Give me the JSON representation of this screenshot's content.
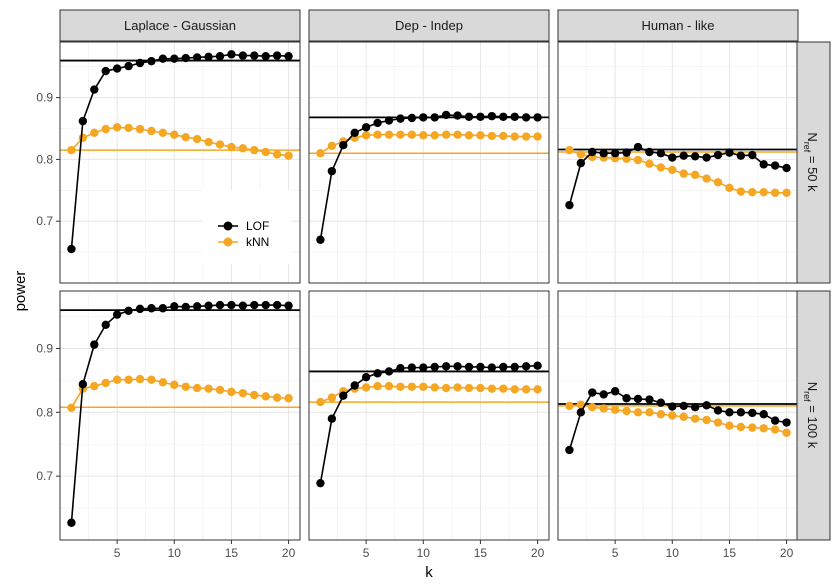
{
  "chart_data": {
    "type": "line",
    "xlabel": "k",
    "ylabel": "power",
    "xlim": [
      0,
      21
    ],
    "ylim": [
      0.6,
      0.99
    ],
    "x_ticks": [
      5,
      10,
      15,
      20
    ],
    "y_ticks": [
      0.7,
      0.8,
      0.9
    ],
    "columns": [
      "Laplace - Gaussian",
      "Dep - Indep",
      "Human - like"
    ],
    "rows": [
      {
        "label_main": "N",
        "label_sub": "ref",
        "label_rest": " = 50 k"
      },
      {
        "label_main": "N",
        "label_sub": "ref",
        "label_rest": " = 100 k"
      }
    ],
    "legend": [
      {
        "name": "LOF",
        "color": "#000000"
      },
      {
        "name": "kNN",
        "color": "#f5a623"
      }
    ],
    "x": [
      1,
      2,
      3,
      4,
      5,
      6,
      7,
      8,
      9,
      10,
      11,
      12,
      13,
      14,
      15,
      16,
      17,
      18,
      19,
      20
    ],
    "panels": [
      {
        "row": 0,
        "col": 0,
        "hlines": {
          "LOF": 0.96,
          "kNN": 0.815
        },
        "series": [
          {
            "name": "LOF",
            "values": [
              0.655,
              0.862,
              0.913,
              0.943,
              0.947,
              0.951,
              0.956,
              0.959,
              0.963,
              0.963,
              0.964,
              0.965,
              0.966,
              0.967,
              0.97,
              0.968,
              0.968,
              0.967,
              0.968,
              0.967
            ]
          },
          {
            "name": "kNN",
            "values": [
              0.815,
              0.835,
              0.843,
              0.849,
              0.852,
              0.851,
              0.849,
              0.846,
              0.843,
              0.84,
              0.836,
              0.833,
              0.828,
              0.824,
              0.82,
              0.818,
              0.815,
              0.812,
              0.808,
              0.806
            ]
          }
        ]
      },
      {
        "row": 0,
        "col": 1,
        "hlines": {
          "LOF": 0.868,
          "kNN": 0.81
        },
        "series": [
          {
            "name": "LOF",
            "values": [
              0.67,
              0.781,
              0.823,
              0.843,
              0.852,
              0.859,
              0.863,
              0.866,
              0.867,
              0.868,
              0.868,
              0.872,
              0.871,
              0.869,
              0.869,
              0.87,
              0.869,
              0.869,
              0.868,
              0.868
            ]
          },
          {
            "name": "kNN",
            "values": [
              0.81,
              0.822,
              0.829,
              0.835,
              0.839,
              0.84,
              0.84,
              0.84,
              0.84,
              0.839,
              0.839,
              0.84,
              0.84,
              0.839,
              0.839,
              0.838,
              0.838,
              0.837,
              0.837,
              0.837
            ]
          }
        ]
      },
      {
        "row": 0,
        "col": 2,
        "hlines": {
          "LOF": 0.816,
          "kNN": 0.812
        },
        "series": [
          {
            "name": "LOF",
            "values": [
              0.726,
              0.794,
              0.812,
              0.81,
              0.81,
              0.811,
              0.82,
              0.812,
              0.81,
              0.803,
              0.806,
              0.805,
              0.803,
              0.807,
              0.811,
              0.806,
              0.807,
              0.792,
              0.79,
              0.786
            ]
          },
          {
            "name": "kNN",
            "values": [
              0.815,
              0.808,
              0.804,
              0.803,
              0.802,
              0.801,
              0.799,
              0.793,
              0.787,
              0.783,
              0.777,
              0.775,
              0.769,
              0.763,
              0.754,
              0.748,
              0.747,
              0.747,
              0.746,
              0.746
            ]
          }
        ]
      },
      {
        "row": 1,
        "col": 0,
        "hlines": {
          "LOF": 0.96,
          "kNN": 0.808
        },
        "series": [
          {
            "name": "LOF",
            "values": [
              0.627,
              0.844,
              0.906,
              0.937,
              0.953,
              0.959,
              0.962,
              0.963,
              0.963,
              0.966,
              0.965,
              0.966,
              0.967,
              0.968,
              0.968,
              0.967,
              0.968,
              0.968,
              0.968,
              0.967
            ]
          },
          {
            "name": "kNN",
            "values": [
              0.807,
              0.837,
              0.841,
              0.846,
              0.851,
              0.851,
              0.852,
              0.851,
              0.847,
              0.843,
              0.84,
              0.838,
              0.837,
              0.835,
              0.832,
              0.83,
              0.827,
              0.825,
              0.823,
              0.822
            ]
          }
        ]
      },
      {
        "row": 1,
        "col": 1,
        "hlines": {
          "LOF": 0.864,
          "kNN": 0.816
        },
        "series": [
          {
            "name": "LOF",
            "values": [
              0.689,
              0.79,
              0.826,
              0.842,
              0.855,
              0.861,
              0.864,
              0.869,
              0.87,
              0.87,
              0.871,
              0.872,
              0.872,
              0.871,
              0.871,
              0.87,
              0.871,
              0.871,
              0.872,
              0.873
            ]
          },
          {
            "name": "kNN",
            "values": [
              0.816,
              0.823,
              0.833,
              0.837,
              0.839,
              0.841,
              0.841,
              0.84,
              0.84,
              0.84,
              0.839,
              0.838,
              0.839,
              0.838,
              0.838,
              0.837,
              0.837,
              0.836,
              0.836,
              0.836
            ]
          }
        ]
      },
      {
        "row": 1,
        "col": 2,
        "hlines": {
          "LOF": 0.813,
          "kNN": 0.81
        },
        "series": [
          {
            "name": "LOF",
            "values": [
              0.741,
              0.8,
              0.831,
              0.828,
              0.833,
              0.822,
              0.821,
              0.82,
              0.815,
              0.809,
              0.81,
              0.808,
              0.811,
              0.803,
              0.8,
              0.8,
              0.799,
              0.797,
              0.787,
              0.784
            ]
          },
          {
            "name": "kNN",
            "values": [
              0.81,
              0.812,
              0.808,
              0.806,
              0.804,
              0.802,
              0.8,
              0.8,
              0.797,
              0.795,
              0.793,
              0.79,
              0.788,
              0.784,
              0.779,
              0.777,
              0.776,
              0.775,
              0.773,
              0.768
            ]
          }
        ]
      }
    ]
  }
}
